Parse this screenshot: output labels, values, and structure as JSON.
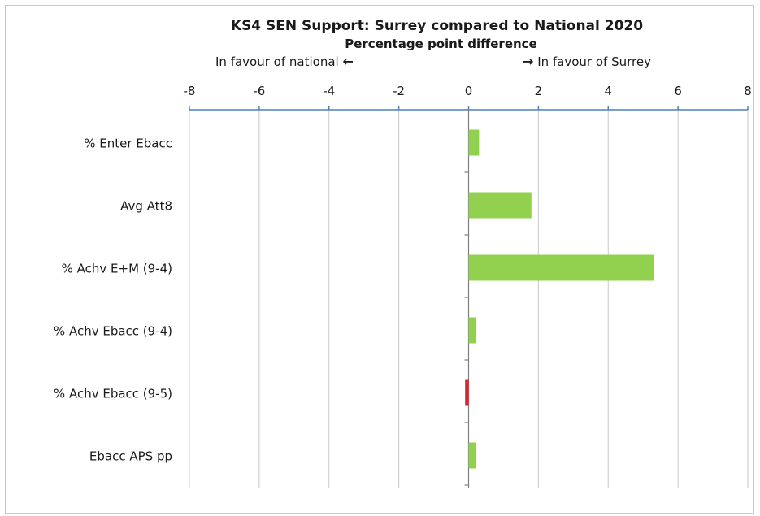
{
  "chart_data": {
    "type": "bar",
    "orientation": "horizontal",
    "title": "KS4 SEN Support: Surrey compared to National 2020",
    "subtitle": "Percentage point difference",
    "annotation_left": "In favour of national",
    "annotation_right": "In favour of Surrey",
    "categories": [
      "% Enter Ebacc",
      "Avg Att8",
      "% Achv E+M (9-4)",
      "% Achv Ebacc (9-4)",
      "% Achv Ebacc (9-5)",
      "Ebacc APS pp"
    ],
    "values": [
      0.3,
      1.8,
      5.3,
      0.2,
      -0.1,
      0.2
    ],
    "xlim": [
      -8,
      8
    ],
    "xticks": [
      -8,
      -6,
      -4,
      -2,
      0,
      2,
      4,
      6,
      8
    ],
    "gridlines": true,
    "axis_position": "top",
    "colors": {
      "positive": "#92d050",
      "negative": "#e0202a",
      "grid": "#c8c8c8",
      "axis": "#4f81bd"
    }
  },
  "icons": {
    "left_arrow": "left-arrow-icon",
    "right_arrow": "right-arrow-icon"
  }
}
